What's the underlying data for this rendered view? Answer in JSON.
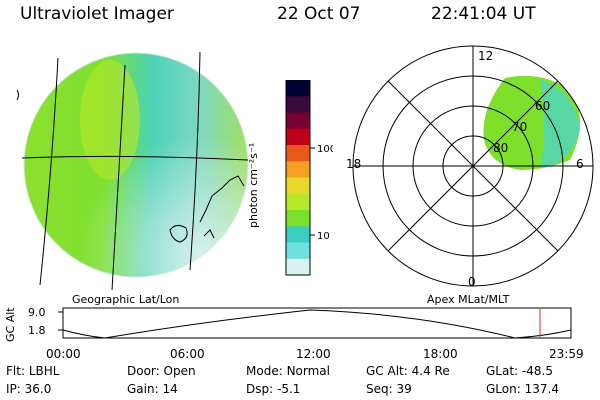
{
  "header": {
    "title": "Ultraviolet Imager",
    "date": "22 Oct 07",
    "time": "22:41:04 UT"
  },
  "left_panel": {
    "label": "Geographic Lat/Lon"
  },
  "right_panel": {
    "label": "Apex MLat/MLT",
    "mlt_labels": {
      "top": "12",
      "left": "18",
      "right": "6",
      "bottom": "0"
    },
    "lat_labels": [
      "80",
      "70",
      "60"
    ]
  },
  "colorbar": {
    "label": "photon cm⁻²s⁻¹",
    "ticks": [
      "100",
      "10"
    ],
    "colors": [
      "#000033",
      "#3a0a3a",
      "#7a0033",
      "#c00018",
      "#e85818",
      "#f5a020",
      "#e8d82a",
      "#b6e82a",
      "#7ae02a",
      "#3ad0c0",
      "#6ee0e0",
      "#d8f2f2"
    ]
  },
  "altitude_plot": {
    "ylabel": "GC Alt",
    "y_ticks": [
      "9.0",
      "1.8"
    ],
    "x_ticks": [
      "00:00",
      "06:00",
      "12:00",
      "18:00",
      "23:59"
    ],
    "marker_color": "#d03030"
  },
  "status": {
    "row1": [
      {
        "key": "Flt:",
        "value": "LBHL"
      },
      {
        "key": "Door:",
        "value": "Open"
      },
      {
        "key": "Mode:",
        "value": "Normal"
      },
      {
        "key": "GC Alt:",
        "value": "4.4 Re"
      },
      {
        "key": "GLat:",
        "value": "-48.5"
      }
    ],
    "row2": [
      {
        "key": "IP:",
        "value": "36.0"
      },
      {
        "key": "Gain:",
        "value": "14"
      },
      {
        "key": "Dsp:",
        "value": "-5.1"
      },
      {
        "key": "Seq:",
        "value": "39"
      },
      {
        "key": "GLon:",
        "value": "137.4"
      }
    ]
  },
  "colors": {
    "aurora_green": "#7ee02a",
    "aurora_cyan": "#4fd4c4",
    "aurora_pale": "#cfeeee"
  }
}
